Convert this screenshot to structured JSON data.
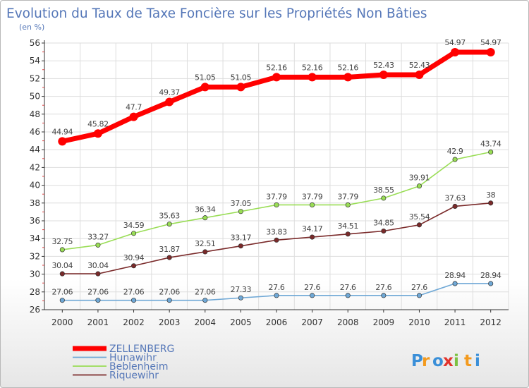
{
  "chart_data": {
    "type": "line",
    "title": "Evolution du Taux de Taxe Foncière sur les Propriétés Non Bâties",
    "subtitle": "(en %)",
    "x": [
      "2000",
      "2001",
      "2002",
      "2003",
      "2004",
      "2005",
      "2006",
      "2007",
      "2008",
      "2009",
      "2010",
      "2011",
      "2012"
    ],
    "ylim": [
      26,
      56
    ],
    "yticks": [
      26,
      28,
      30,
      32,
      34,
      36,
      38,
      40,
      42,
      44,
      46,
      48,
      50,
      52,
      54,
      56
    ],
    "grid": true,
    "legend_position": "bottom-left",
    "series": [
      {
        "name": "ZELLENBERG",
        "color": "#ff0000",
        "labels": [
          "44.94",
          "45.82",
          "47.7",
          "49.37",
          "51.05",
          "51.05",
          "52.16",
          "52.16",
          "52.16",
          "52.43",
          "52.43",
          "54.97",
          "54.97"
        ],
        "values": [
          44.94,
          45.82,
          47.7,
          49.37,
          51.05,
          51.05,
          52.16,
          52.16,
          52.16,
          52.43,
          52.43,
          54.97,
          54.97
        ]
      },
      {
        "name": "Hunawihr",
        "color": "#6fa8d6",
        "labels": [
          "27.06",
          "27.06",
          "27.06",
          "27.06",
          "27.06",
          "27.33",
          "27.6",
          "27.6",
          "27.6",
          "27.6",
          "27.6",
          "28.94",
          "28.94"
        ],
        "values": [
          27.06,
          27.06,
          27.06,
          27.06,
          27.06,
          27.33,
          27.6,
          27.6,
          27.6,
          27.6,
          27.6,
          28.94,
          28.94
        ]
      },
      {
        "name": "Beblenheim",
        "color": "#99dd55",
        "labels": [
          "32.75",
          "33.27",
          "34.59",
          "35.63",
          "36.34",
          "37.05",
          "37.79",
          "37.79",
          "37.79",
          "38.55",
          "39.91",
          "42.9",
          "43.74"
        ],
        "values": [
          32.75,
          33.27,
          34.59,
          35.63,
          36.34,
          37.05,
          37.79,
          37.79,
          37.79,
          38.55,
          39.91,
          42.9,
          43.74
        ]
      },
      {
        "name": "Riquewihr",
        "color": "#7a2a2a",
        "labels": [
          "30.04",
          "30.04",
          "30.94",
          "31.87",
          "32.51",
          "33.17",
          "33.83",
          "34.17",
          "34.51",
          "34.85",
          "35.54",
          "37.63",
          "38"
        ],
        "values": [
          30.04,
          30.04,
          30.94,
          31.87,
          32.51,
          33.17,
          33.83,
          34.17,
          34.51,
          34.85,
          35.54,
          37.63,
          38
        ]
      }
    ]
  },
  "logo": {
    "text": "Proxiti",
    "letters": [
      "P",
      "r",
      "o",
      "x",
      "i",
      "t",
      "i"
    ],
    "colors": [
      "#3a8fd8",
      "#f39a1e",
      "#3a8fd8",
      "#e2332b",
      "#7cc142",
      "#f39a1e",
      "#3a8fd8"
    ]
  }
}
